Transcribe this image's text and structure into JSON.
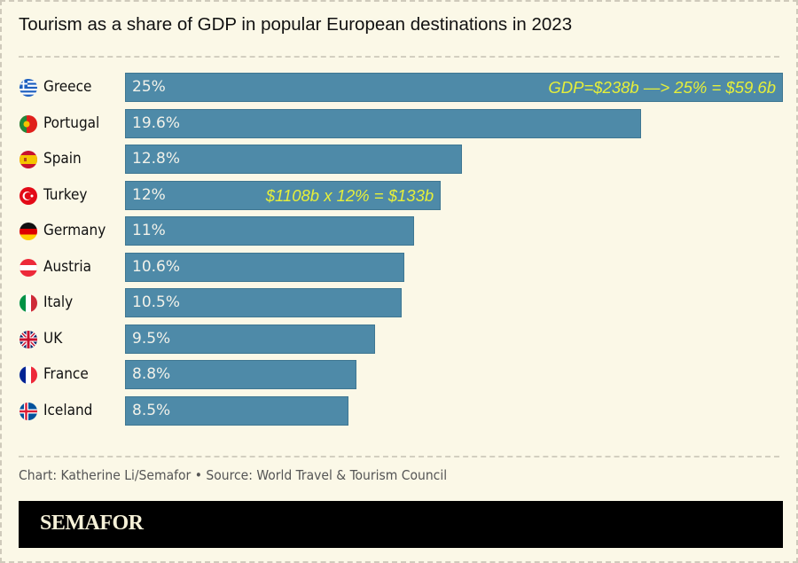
{
  "chart_data": {
    "type": "bar",
    "orientation": "horizontal",
    "title": "Tourism as a share of GDP in popular European destinations in 2023",
    "categories": [
      "Greece",
      "Portugal",
      "Spain",
      "Turkey",
      "Germany",
      "Austria",
      "Italy",
      "UK",
      "France",
      "Iceland"
    ],
    "values": [
      25,
      19.6,
      12.8,
      12,
      11,
      10.6,
      10.5,
      9.5,
      8.8,
      8.5
    ],
    "labels": [
      "25%",
      "19.6%",
      "12.8%",
      "12%",
      "11%",
      "10.6%",
      "10.5%",
      "9.5%",
      "8.8%",
      "8.5%"
    ],
    "flags": [
      "greece-flag-icon",
      "portugal-flag-icon",
      "spain-flag-icon",
      "turkey-flag-icon",
      "germany-flag-icon",
      "austria-flag-icon",
      "italy-flag-icon",
      "uk-flag-icon",
      "france-flag-icon",
      "iceland-flag-icon"
    ],
    "annotations": [
      {
        "category": "Greece",
        "text": "GDP=$238b —>  25% = $59.6b"
      },
      {
        "category": "Turkey",
        "text": "$1108b x 12% = $133b"
      }
    ],
    "xlim": [
      0,
      25
    ],
    "xlabel": "",
    "ylabel": "",
    "grid": false,
    "bar_color": "#4e8aa8",
    "annotation_color": "#e6ef3a"
  },
  "footer": {
    "source": "Chart: Katherine Li/Semafor • Source: World Travel & Tourism Council",
    "brand": "SEMAFOR"
  }
}
